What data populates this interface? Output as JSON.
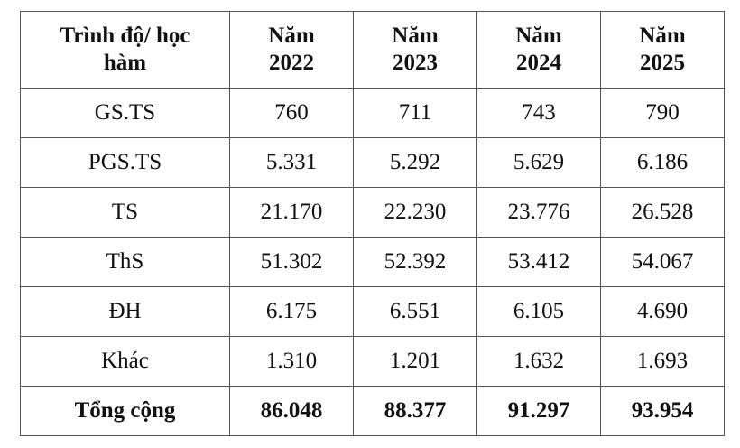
{
  "table": {
    "headers": [
      "Trình độ/ học hàm",
      "Năm 2022",
      "Năm 2023",
      "Năm 2024",
      "Năm 2025"
    ],
    "rows": [
      [
        "GS.TS",
        "760",
        "711",
        "743",
        "790"
      ],
      [
        "PGS.TS",
        "5.331",
        "5.292",
        "5.629",
        "6.186"
      ],
      [
        "TS",
        "21.170",
        "22.230",
        "23.776",
        "26.528"
      ],
      [
        "ThS",
        "51.302",
        "52.392",
        "53.412",
        "54.067"
      ],
      [
        "ĐH",
        "6.175",
        "6.551",
        "6.105",
        "4.690"
      ],
      [
        "Khác",
        "1.310",
        "1.201",
        "1.632",
        "1.693"
      ],
      [
        "Tổng cộng",
        "86.048",
        "88.377",
        "91.297",
        "93.954"
      ]
    ]
  }
}
